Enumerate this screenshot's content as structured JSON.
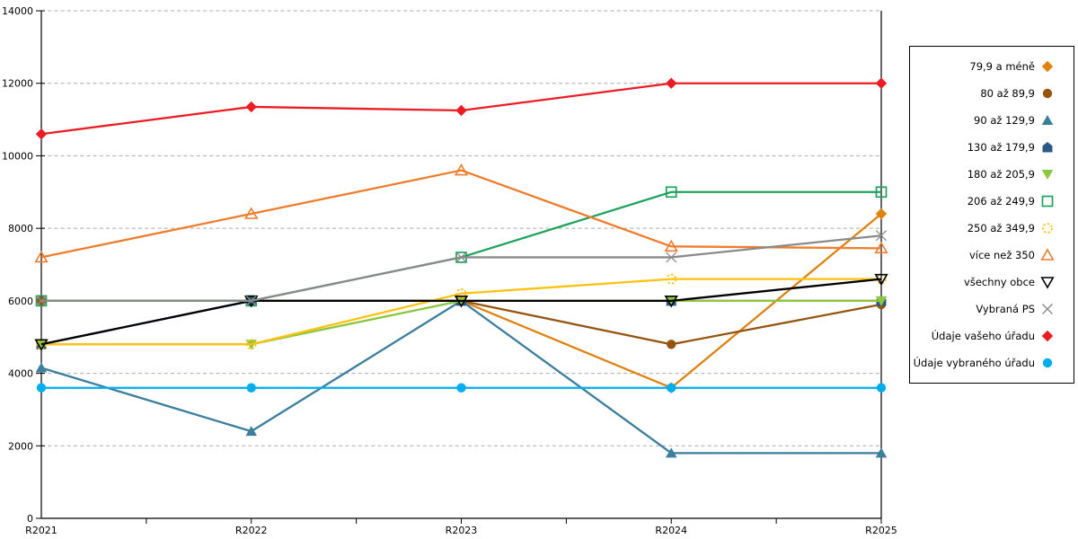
{
  "chart_data": {
    "type": "line",
    "title": "",
    "xlabel": "",
    "ylabel": "",
    "categories": [
      "R2021",
      "R2022",
      "R2023",
      "R2024",
      "R2025"
    ],
    "ylim": [
      0,
      14000
    ],
    "yticks": [
      0,
      2000,
      4000,
      6000,
      8000,
      10000,
      12000,
      14000
    ],
    "grid": "horizontal-dashed",
    "grid_color": "#ABABAB",
    "axis_color": "#000000",
    "legend_position": "right-box",
    "series": [
      {
        "name": "79,9 a méně",
        "color": "#E0820F",
        "marker": "diamond",
        "fill": "filled",
        "values": [
          6000,
          6000,
          6000,
          3600,
          8400
        ]
      },
      {
        "name": "80 až 89,9",
        "color": "#95540F",
        "marker": "circle",
        "fill": "filled",
        "values": [
          6000,
          6000,
          6000,
          4800,
          5900
        ]
      },
      {
        "name": "90 až 129,9",
        "color": "#3B7E9D",
        "marker": "triangle-up",
        "fill": "filled",
        "values": [
          4150,
          2400,
          6000,
          1800,
          1800
        ]
      },
      {
        "name": "130 až 179,9",
        "color": "#2B5884",
        "marker": "pentagon",
        "fill": "filled",
        "values": [
          4800,
          6000,
          6000,
          6000,
          6000
        ]
      },
      {
        "name": "180 až 205,9",
        "color": "#8DC63F",
        "marker": "triangle-down",
        "fill": "filled",
        "values": [
          4800,
          4800,
          6000,
          6000,
          6000
        ]
      },
      {
        "name": "206 až 249,9",
        "color": "#1FA35C",
        "marker": "square",
        "fill": "open",
        "values": [
          6000,
          6000,
          7200,
          9000,
          9000
        ]
      },
      {
        "name": "250 až 349,9",
        "color": "#FFC10E",
        "marker": "circle-dashed",
        "fill": "open",
        "values": [
          4800,
          4800,
          6200,
          6600,
          6600
        ]
      },
      {
        "name": "více než 350",
        "color": "#EF7D2D",
        "marker": "triangle-up",
        "fill": "open",
        "values": [
          7200,
          8400,
          9600,
          7500,
          7450
        ]
      },
      {
        "name": "všechny obce",
        "color": "#000000",
        "marker": "triangle-down",
        "fill": "open",
        "values": [
          4800,
          6000,
          6000,
          6000,
          6600
        ]
      },
      {
        "name": "Vybraná PS",
        "color": "#8A8A8A",
        "marker": "x",
        "fill": "open",
        "values": [
          6000,
          6000,
          7200,
          7200,
          7800
        ]
      },
      {
        "name": "Údaje vašeho úřadu",
        "color": "#EC1C24",
        "marker": "diamond",
        "fill": "filled",
        "values": [
          10600,
          11350,
          11250,
          12000,
          12000
        ]
      },
      {
        "name": "Údaje vybraného úřadu",
        "color": "#00AEEF",
        "marker": "circle",
        "fill": "filled",
        "values": [
          3600,
          3600,
          3600,
          3600,
          3600
        ]
      }
    ]
  }
}
